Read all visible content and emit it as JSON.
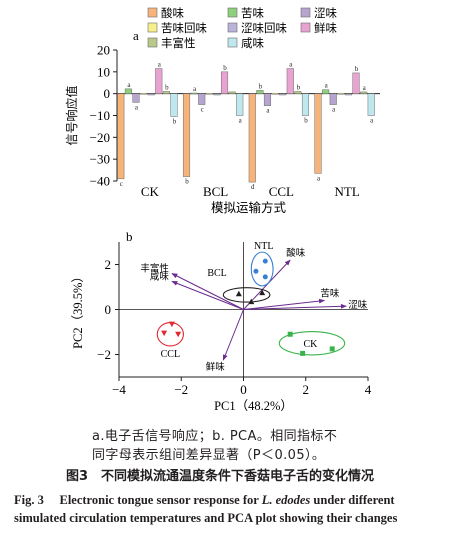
{
  "chart_data": [
    {
      "type": "bar",
      "panel": "a",
      "categories": [
        "CK",
        "BCL",
        "CCL",
        "NTL"
      ],
      "series": [
        {
          "name": "酸味",
          "color": "#f6b47a",
          "values": [
            -39,
            -38,
            -40.5,
            -36.5
          ],
          "letters": [
            "c",
            "b",
            "d",
            "a"
          ]
        },
        {
          "name": "苦味",
          "color": "#8fd07c",
          "values": [
            2.2,
            0.3,
            1.5,
            1.8
          ],
          "letters": [
            "a",
            "a",
            "b",
            "a"
          ]
        },
        {
          "name": "涩味",
          "color": "#b6a5cf",
          "values": [
            -4,
            -5,
            -5.5,
            -5
          ],
          "letters": [
            "a",
            "c",
            "a",
            "a"
          ]
        },
        {
          "name": "苦味回味",
          "color": "#f7ef8c",
          "values": [
            0.2,
            0.2,
            0.2,
            0.2
          ],
          "letters": [
            "",
            "",
            "",
            ""
          ]
        },
        {
          "name": "涩味回味",
          "color": "#b9b4d8",
          "values": [
            -0.6,
            -0.6,
            -0.6,
            -0.6
          ],
          "letters": [
            "",
            "",
            "",
            ""
          ]
        },
        {
          "name": "鲜味",
          "color": "#e9a3d1",
          "values": [
            11.5,
            10,
            11.5,
            9.5
          ],
          "letters": [
            "a",
            "b",
            "a",
            "b"
          ]
        },
        {
          "name": "丰富性",
          "color": "#b8c98a",
          "values": [
            1,
            0.8,
            1,
            0.8
          ],
          "letters": [
            "b",
            "",
            "b",
            "a"
          ]
        },
        {
          "name": "咸味",
          "color": "#bfe8ee",
          "values": [
            -10.5,
            -10,
            -10,
            -10
          ],
          "letters": [
            "b",
            "a",
            "b",
            "a"
          ]
        }
      ],
      "ylabel": "信号响应值",
      "xlabel": "模拟运输方式",
      "ylim": [
        -40,
        20
      ],
      "yticks": [
        -40,
        -30,
        -20,
        -10,
        0,
        10,
        20
      ],
      "legend": "top"
    },
    {
      "type": "scatter",
      "panel": "b",
      "xlabel": "PC1（48.2%）",
      "ylabel": "PC2（39.5%）",
      "xlim": [
        -4,
        4
      ],
      "ylim": [
        -3,
        3
      ],
      "xticks": [
        -4,
        -2,
        0,
        2,
        4
      ],
      "yticks": [
        -2,
        0,
        2
      ],
      "groups": [
        {
          "name": "CK",
          "color": "#3ab34a",
          "marker": "square",
          "points": [
            [
              1.5,
              -1.1
            ],
            [
              2.85,
              -1.75
            ],
            [
              1.9,
              -1.95
            ]
          ],
          "ellipse": {
            "cx": 2.2,
            "cy": -1.5,
            "rx": 1.05,
            "ry": 0.52
          },
          "label_pos": [
            2.15,
            -1.5
          ]
        },
        {
          "name": "BCL",
          "color": "#231f20",
          "marker": "triangle",
          "points": [
            [
              -0.15,
              0.7
            ],
            [
              0.6,
              0.75
            ],
            [
              0.25,
              0.35
            ]
          ],
          "ellipse": {
            "cx": 0.1,
            "cy": 0.65,
            "rx": 0.75,
            "ry": 0.32
          },
          "label_pos": [
            -0.85,
            1.65
          ]
        },
        {
          "name": "NTL",
          "color": "#3a7fd1",
          "marker": "circle",
          "points": [
            [
              0.4,
              1.7
            ],
            [
              0.7,
              2.15
            ],
            [
              0.7,
              1.45
            ]
          ],
          "ellipse": {
            "cx": 0.6,
            "cy": 1.8,
            "rx": 0.35,
            "ry": 0.75
          },
          "label_pos": [
            0.65,
            2.85
          ]
        },
        {
          "name": "CCL",
          "color": "#e3262f",
          "marker": "triangle-down",
          "points": [
            [
              -2.55,
              -1.05
            ],
            [
              -2.3,
              -0.65
            ],
            [
              -2.1,
              -1.1
            ]
          ],
          "ellipse": {
            "cx": -2.35,
            "cy": -1.1,
            "rx": 0.42,
            "ry": 0.52
          },
          "label_pos": [
            -2.35,
            -1.95
          ]
        }
      ],
      "loadings": [
        {
          "name": "酸味",
          "x": 1.5,
          "y": 2.2
        },
        {
          "name": "苦味",
          "x": 2.6,
          "y": 0.4
        },
        {
          "name": "涩味",
          "x": 3.3,
          "y": 0.15
        },
        {
          "name": "丰富性",
          "x": -2.3,
          "y": 1.6
        },
        {
          "name": "咸味",
          "x": -2.3,
          "y": 1.25
        },
        {
          "name": "鲜味",
          "x": -0.65,
          "y": -2.25
        }
      ]
    }
  ],
  "text": {
    "panel_a": "a",
    "panel_b": "b",
    "note_line1": "a.电子舌信号响应；b. PCA。相同指标不",
    "note_line2": "同字母表示组间差异显著（P＜0.05）。",
    "fig_cn": "图3　不同模拟流通温度条件下香菇电子舌的变化情况",
    "fig_en_1a": "Fig. 3　 Electronic tongue sensor response for ",
    "fig_en_1b": "L. edodes",
    "fig_en_1c": " under different",
    "fig_en_2": "simulated circulation temperatures and PCA plot showing their changes"
  }
}
